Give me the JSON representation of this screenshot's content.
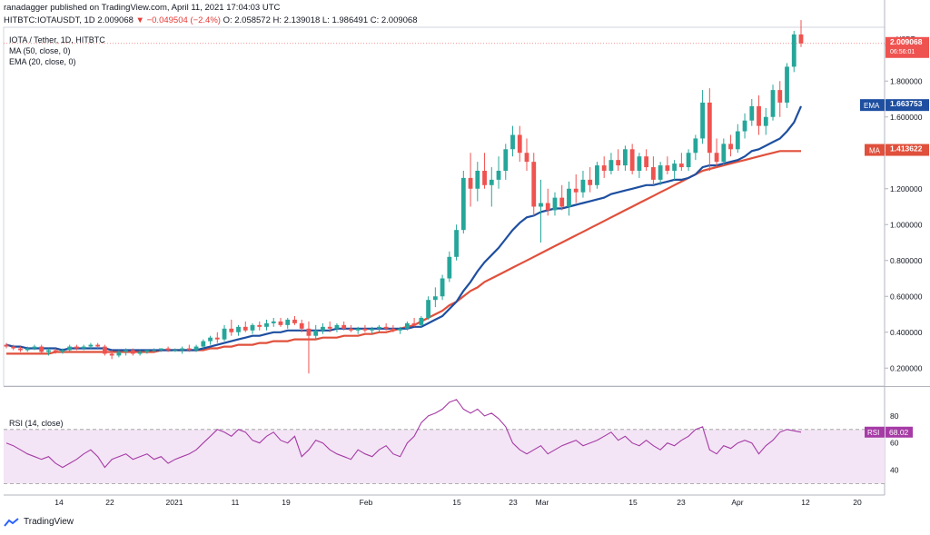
{
  "header": {
    "published": "ranadagger published on TradingView.com, April 11, 2021 17:04:03 UTC",
    "symbol": "HITBTC:IOTAUSDT, 1D",
    "last": "2.009068",
    "change": "−0.049504 (−2.4%)",
    "ohlc": "O: 2.058572 H: 2.139018 L: 1.986491 C: 2.009068"
  },
  "legend": {
    "title": "IOTA / Tether, 1D, HITBTC",
    "ma": "MA (50, close, 0)",
    "ema": "EMA (20, close, 0)",
    "rsi": "RSI (14, close)"
  },
  "price_axis": {
    "currency": "USDT",
    "ticks": [
      "0.200000",
      "0.400000",
      "0.600000",
      "0.800000",
      "1.000000",
      "1.200000",
      "1.400000",
      "1.600000",
      "1.800000",
      "2"
    ],
    "tick_values": [
      0.2,
      0.4,
      0.6,
      0.8,
      1.0,
      1.2,
      1.4,
      1.6,
      1.8,
      2.0
    ],
    "last_label": "2.009068",
    "countdown": "06:56:01",
    "ema_label": "EMA",
    "ema_value": "1.663753",
    "ma_label": "MA",
    "ma_value": "1.413622"
  },
  "rsi_axis": {
    "ticks": [
      "40",
      "60",
      "80"
    ],
    "label": "RSI",
    "value": "68.02"
  },
  "x_axis": {
    "ticks": [
      "14",
      "22",
      "2021",
      "11",
      "19",
      "Feb",
      "15",
      "23",
      "Mar",
      "15",
      "23",
      "Apr",
      "12",
      "20"
    ]
  },
  "colors": {
    "up": "#26a69a",
    "down": "#ef5350",
    "ema": "#1e4fa0",
    "ma": "#e0503c",
    "rsi": "#a63ba6",
    "rsi_band": "#f3e5f5"
  },
  "footer": {
    "brand": "TradingView"
  },
  "chart_data": {
    "type": "candlestick",
    "ylim": [
      0.1,
      2.1
    ],
    "rsi_ylim": [
      25,
      100
    ],
    "candles": [
      [
        0.33,
        0.34,
        0.31,
        0.32
      ],
      [
        0.32,
        0.33,
        0.3,
        0.31
      ],
      [
        0.31,
        0.32,
        0.29,
        0.3
      ],
      [
        0.3,
        0.32,
        0.29,
        0.31
      ],
      [
        0.31,
        0.33,
        0.3,
        0.32
      ],
      [
        0.32,
        0.33,
        0.28,
        0.29
      ],
      [
        0.29,
        0.31,
        0.27,
        0.3
      ],
      [
        0.3,
        0.31,
        0.28,
        0.29
      ],
      [
        0.29,
        0.31,
        0.28,
        0.3
      ],
      [
        0.3,
        0.33,
        0.29,
        0.32
      ],
      [
        0.32,
        0.33,
        0.3,
        0.31
      ],
      [
        0.31,
        0.33,
        0.3,
        0.32
      ],
      [
        0.32,
        0.34,
        0.31,
        0.33
      ],
      [
        0.33,
        0.34,
        0.31,
        0.32
      ],
      [
        0.32,
        0.33,
        0.27,
        0.28
      ],
      [
        0.28,
        0.3,
        0.25,
        0.27
      ],
      [
        0.27,
        0.3,
        0.26,
        0.29
      ],
      [
        0.29,
        0.31,
        0.27,
        0.3
      ],
      [
        0.3,
        0.31,
        0.27,
        0.28
      ],
      [
        0.28,
        0.3,
        0.27,
        0.29
      ],
      [
        0.29,
        0.3,
        0.28,
        0.3
      ],
      [
        0.3,
        0.31,
        0.29,
        0.3
      ],
      [
        0.3,
        0.31,
        0.29,
        0.31
      ],
      [
        0.31,
        0.32,
        0.29,
        0.3
      ],
      [
        0.3,
        0.31,
        0.29,
        0.3
      ],
      [
        0.3,
        0.32,
        0.28,
        0.31
      ],
      [
        0.31,
        0.33,
        0.29,
        0.3
      ],
      [
        0.3,
        0.33,
        0.29,
        0.32
      ],
      [
        0.32,
        0.36,
        0.31,
        0.35
      ],
      [
        0.35,
        0.38,
        0.33,
        0.37
      ],
      [
        0.37,
        0.4,
        0.34,
        0.36
      ],
      [
        0.36,
        0.44,
        0.35,
        0.42
      ],
      [
        0.42,
        0.47,
        0.38,
        0.4
      ],
      [
        0.4,
        0.44,
        0.38,
        0.43
      ],
      [
        0.43,
        0.46,
        0.4,
        0.41
      ],
      [
        0.41,
        0.45,
        0.39,
        0.44
      ],
      [
        0.44,
        0.46,
        0.41,
        0.43
      ],
      [
        0.43,
        0.47,
        0.41,
        0.45
      ],
      [
        0.45,
        0.48,
        0.43,
        0.46
      ],
      [
        0.46,
        0.48,
        0.43,
        0.44
      ],
      [
        0.44,
        0.48,
        0.42,
        0.47
      ],
      [
        0.47,
        0.49,
        0.44,
        0.45
      ],
      [
        0.45,
        0.47,
        0.4,
        0.42
      ],
      [
        0.42,
        0.46,
        0.17,
        0.38
      ],
      [
        0.38,
        0.44,
        0.36,
        0.41
      ],
      [
        0.41,
        0.45,
        0.39,
        0.43
      ],
      [
        0.43,
        0.46,
        0.4,
        0.42
      ],
      [
        0.42,
        0.45,
        0.4,
        0.44
      ],
      [
        0.44,
        0.46,
        0.41,
        0.42
      ],
      [
        0.42,
        0.44,
        0.4,
        0.41
      ],
      [
        0.41,
        0.43,
        0.39,
        0.42
      ],
      [
        0.42,
        0.44,
        0.4,
        0.41
      ],
      [
        0.41,
        0.43,
        0.39,
        0.42
      ],
      [
        0.42,
        0.44,
        0.4,
        0.43
      ],
      [
        0.43,
        0.45,
        0.41,
        0.42
      ],
      [
        0.42,
        0.44,
        0.4,
        0.41
      ],
      [
        0.41,
        0.43,
        0.39,
        0.42
      ],
      [
        0.42,
        0.46,
        0.41,
        0.45
      ],
      [
        0.45,
        0.48,
        0.43,
        0.44
      ],
      [
        0.44,
        0.49,
        0.43,
        0.48
      ],
      [
        0.48,
        0.6,
        0.47,
        0.58
      ],
      [
        0.58,
        0.65,
        0.54,
        0.6
      ],
      [
        0.6,
        0.72,
        0.58,
        0.7
      ],
      [
        0.7,
        0.85,
        0.68,
        0.82
      ],
      [
        0.82,
        1.0,
        0.8,
        0.97
      ],
      [
        0.97,
        1.3,
        0.95,
        1.26
      ],
      [
        1.26,
        1.4,
        1.1,
        1.2
      ],
      [
        1.2,
        1.35,
        1.13,
        1.3
      ],
      [
        1.3,
        1.4,
        1.2,
        1.22
      ],
      [
        1.22,
        1.32,
        1.1,
        1.25
      ],
      [
        1.25,
        1.38,
        1.2,
        1.3
      ],
      [
        1.3,
        1.45,
        1.25,
        1.42
      ],
      [
        1.42,
        1.55,
        1.38,
        1.5
      ],
      [
        1.5,
        1.55,
        1.35,
        1.4
      ],
      [
        1.4,
        1.48,
        1.3,
        1.35
      ],
      [
        1.35,
        1.4,
        1.05,
        1.1
      ],
      [
        1.1,
        1.25,
        0.9,
        1.12
      ],
      [
        1.12,
        1.2,
        1.05,
        1.08
      ],
      [
        1.08,
        1.18,
        1.05,
        1.15
      ],
      [
        1.15,
        1.22,
        1.08,
        1.1
      ],
      [
        1.1,
        1.24,
        1.05,
        1.2
      ],
      [
        1.2,
        1.28,
        1.12,
        1.18
      ],
      [
        1.18,
        1.3,
        1.15,
        1.25
      ],
      [
        1.25,
        1.32,
        1.18,
        1.22
      ],
      [
        1.22,
        1.35,
        1.2,
        1.33
      ],
      [
        1.33,
        1.38,
        1.26,
        1.3
      ],
      [
        1.3,
        1.4,
        1.28,
        1.36
      ],
      [
        1.36,
        1.42,
        1.3,
        1.33
      ],
      [
        1.33,
        1.44,
        1.3,
        1.42
      ],
      [
        1.42,
        1.45,
        1.28,
        1.3
      ],
      [
        1.3,
        1.4,
        1.26,
        1.38
      ],
      [
        1.38,
        1.42,
        1.3,
        1.32
      ],
      [
        1.32,
        1.38,
        1.22,
        1.25
      ],
      [
        1.25,
        1.35,
        1.22,
        1.33
      ],
      [
        1.33,
        1.38,
        1.28,
        1.3
      ],
      [
        1.3,
        1.36,
        1.25,
        1.34
      ],
      [
        1.34,
        1.4,
        1.3,
        1.32
      ],
      [
        1.32,
        1.42,
        1.3,
        1.4
      ],
      [
        1.4,
        1.5,
        1.36,
        1.48
      ],
      [
        1.48,
        1.75,
        1.45,
        1.68
      ],
      [
        1.68,
        1.76,
        1.3,
        1.4
      ],
      [
        1.4,
        1.48,
        1.32,
        1.35
      ],
      [
        1.35,
        1.48,
        1.33,
        1.45
      ],
      [
        1.45,
        1.5,
        1.38,
        1.42
      ],
      [
        1.42,
        1.56,
        1.4,
        1.52
      ],
      [
        1.52,
        1.62,
        1.48,
        1.58
      ],
      [
        1.58,
        1.7,
        1.55,
        1.66
      ],
      [
        1.66,
        1.72,
        1.5,
        1.55
      ],
      [
        1.55,
        1.65,
        1.5,
        1.6
      ],
      [
        1.6,
        1.78,
        1.58,
        1.75
      ],
      [
        1.75,
        1.8,
        1.6,
        1.68
      ],
      [
        1.68,
        1.9,
        1.65,
        1.88
      ],
      [
        1.88,
        2.08,
        1.85,
        2.06
      ],
      [
        2.06,
        2.14,
        1.99,
        2.01
      ]
    ],
    "ema20": [
      0.33,
      0.32,
      0.32,
      0.31,
      0.31,
      0.31,
      0.31,
      0.31,
      0.3,
      0.31,
      0.31,
      0.31,
      0.31,
      0.31,
      0.31,
      0.3,
      0.3,
      0.3,
      0.3,
      0.3,
      0.3,
      0.3,
      0.3,
      0.3,
      0.3,
      0.3,
      0.3,
      0.3,
      0.31,
      0.32,
      0.33,
      0.34,
      0.35,
      0.36,
      0.37,
      0.38,
      0.38,
      0.39,
      0.4,
      0.4,
      0.41,
      0.41,
      0.41,
      0.41,
      0.41,
      0.41,
      0.41,
      0.42,
      0.42,
      0.42,
      0.42,
      0.42,
      0.42,
      0.42,
      0.42,
      0.42,
      0.42,
      0.42,
      0.43,
      0.43,
      0.45,
      0.47,
      0.49,
      0.53,
      0.57,
      0.63,
      0.68,
      0.74,
      0.79,
      0.83,
      0.87,
      0.92,
      0.97,
      1.01,
      1.04,
      1.05,
      1.07,
      1.08,
      1.09,
      1.09,
      1.1,
      1.11,
      1.12,
      1.13,
      1.14,
      1.15,
      1.17,
      1.18,
      1.19,
      1.2,
      1.21,
      1.22,
      1.22,
      1.23,
      1.24,
      1.25,
      1.25,
      1.26,
      1.28,
      1.32,
      1.33,
      1.33,
      1.34,
      1.35,
      1.36,
      1.38,
      1.41,
      1.42,
      1.44,
      1.46,
      1.48,
      1.52,
      1.57,
      1.66
    ],
    "ma50": [
      0.28,
      0.28,
      0.28,
      0.28,
      0.28,
      0.28,
      0.28,
      0.29,
      0.29,
      0.29,
      0.29,
      0.29,
      0.29,
      0.29,
      0.29,
      0.29,
      0.29,
      0.29,
      0.29,
      0.29,
      0.29,
      0.29,
      0.3,
      0.3,
      0.3,
      0.3,
      0.3,
      0.3,
      0.3,
      0.31,
      0.31,
      0.32,
      0.32,
      0.33,
      0.33,
      0.33,
      0.34,
      0.34,
      0.35,
      0.35,
      0.35,
      0.36,
      0.36,
      0.36,
      0.36,
      0.37,
      0.37,
      0.37,
      0.38,
      0.38,
      0.38,
      0.39,
      0.39,
      0.4,
      0.4,
      0.41,
      0.42,
      0.43,
      0.44,
      0.46,
      0.48,
      0.5,
      0.52,
      0.55,
      0.57,
      0.6,
      0.63,
      0.65,
      0.68,
      0.7,
      0.72,
      0.74,
      0.76,
      0.78,
      0.8,
      0.82,
      0.84,
      0.86,
      0.88,
      0.9,
      0.92,
      0.94,
      0.96,
      0.98,
      1.0,
      1.02,
      1.04,
      1.06,
      1.08,
      1.1,
      1.12,
      1.14,
      1.16,
      1.18,
      1.2,
      1.22,
      1.24,
      1.26,
      1.28,
      1.3,
      1.31,
      1.32,
      1.33,
      1.34,
      1.35,
      1.36,
      1.37,
      1.38,
      1.39,
      1.4,
      1.41,
      1.41,
      1.41,
      1.41
    ],
    "rsi": [
      60,
      58,
      55,
      52,
      50,
      48,
      50,
      45,
      42,
      45,
      48,
      52,
      55,
      50,
      42,
      48,
      50,
      52,
      48,
      50,
      52,
      48,
      50,
      45,
      48,
      50,
      52,
      55,
      60,
      65,
      70,
      68,
      65,
      70,
      68,
      62,
      60,
      65,
      68,
      62,
      60,
      65,
      50,
      55,
      62,
      60,
      55,
      52,
      50,
      48,
      55,
      52,
      50,
      55,
      58,
      52,
      50,
      60,
      65,
      75,
      80,
      82,
      85,
      90,
      92,
      85,
      82,
      85,
      80,
      82,
      78,
      72,
      60,
      55,
      52,
      55,
      58,
      52,
      55,
      58,
      60,
      62,
      58,
      60,
      62,
      65,
      68,
      62,
      65,
      60,
      58,
      62,
      58,
      55,
      60,
      58,
      62,
      65,
      70,
      72,
      55,
      52,
      58,
      56,
      60,
      62,
      60,
      52,
      58,
      62,
      68,
      70,
      69,
      68
    ]
  }
}
